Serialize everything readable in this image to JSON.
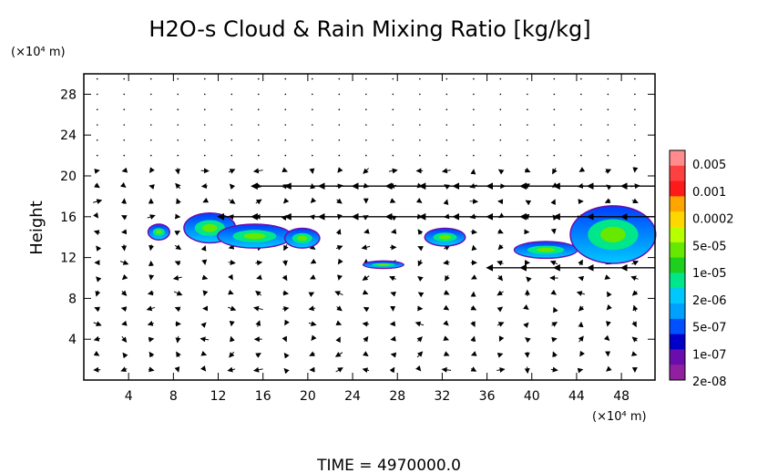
{
  "chart_data": {
    "type": "heatmap",
    "title": "H2O-s Cloud & Rain Mixing Ratio [kg/kg]",
    "ylabel": "Height",
    "y_unit": "(×10⁴ m)",
    "x_unit": "(×10⁴ m)",
    "xlim": [
      0,
      51
    ],
    "ylim": [
      0,
      30
    ],
    "x_ticks": [
      "4",
      "8",
      "12",
      "16",
      "20",
      "24",
      "28",
      "32",
      "36",
      "40",
      "44",
      "48"
    ],
    "y_ticks": [
      "4",
      "8",
      "12",
      "16",
      "20",
      "24",
      "28"
    ],
    "x_tick_values": [
      4,
      8,
      12,
      16,
      20,
      24,
      28,
      32,
      36,
      40,
      44,
      48
    ],
    "y_tick_values": [
      4,
      8,
      12,
      16,
      20,
      24,
      28
    ],
    "grid": false,
    "legend": {
      "placement": "right",
      "entries": [
        "0.005",
        "0.001",
        "0.0002",
        "5e-05",
        "1e-05",
        "2e-06",
        "5e-07",
        "1e-07",
        "2e-08"
      ],
      "colors": [
        "#ff8c8c",
        "#ff4040",
        "#ff1a1a",
        "#ffa500",
        "#ffd700",
        "#b8ff00",
        "#66e800",
        "#1ecf1e",
        "#00e68a",
        "#00c8ff",
        "#00a0ff",
        "#0050ff",
        "#0000c8",
        "#6a0dad",
        "#9020a0"
      ]
    },
    "cloud_regions": [
      {
        "x": [
          5.8,
          7.6
        ],
        "y": [
          13.8,
          15.2
        ],
        "peak": "2e-06"
      },
      {
        "x": [
          9.0,
          13.5
        ],
        "y": [
          13.5,
          16.3
        ],
        "peak": "1e-05"
      },
      {
        "x": [
          12.0,
          18.5
        ],
        "y": [
          13.0,
          15.2
        ],
        "peak": "5e-06"
      },
      {
        "x": [
          18.0,
          21.0
        ],
        "y": [
          13.0,
          14.8
        ],
        "peak": "2e-06"
      },
      {
        "x": [
          25.0,
          28.5
        ],
        "y": [
          11.0,
          11.6
        ],
        "peak": "5e-07"
      },
      {
        "x": [
          30.5,
          34.0
        ],
        "y": [
          13.2,
          14.8
        ],
        "peak": "2e-06"
      },
      {
        "x": [
          38.5,
          44.0
        ],
        "y": [
          12.0,
          13.5
        ],
        "peak": "1e-05"
      },
      {
        "x": [
          43.5,
          51.0
        ],
        "y": [
          11.5,
          17.0
        ],
        "peak": "5e-05"
      }
    ],
    "jets": [
      {
        "y": 19.0,
        "x": [
          15.0,
          51.0
        ],
        "direction": "west"
      },
      {
        "y": 16.0,
        "x": [
          10.0,
          51.0
        ],
        "direction": "west"
      },
      {
        "y": 11.0,
        "x": [
          36.0,
          51.0
        ],
        "direction": "west"
      }
    ],
    "vectors": "wind vectors"
  },
  "footer": {
    "time_label": "TIME  =  4970000.0"
  }
}
